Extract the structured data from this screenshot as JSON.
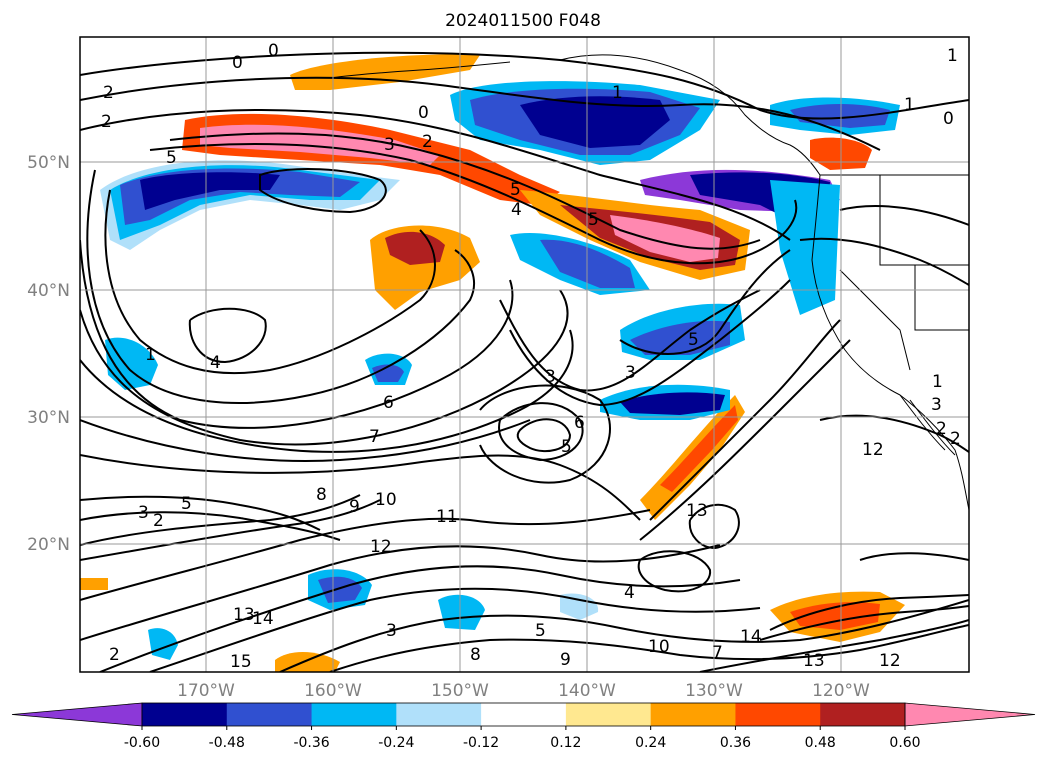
{
  "title": "2024011500 F048",
  "lat_labels": [
    "50°N",
    "40°N",
    "30°N",
    "20°N"
  ],
  "lon_labels": [
    "170°W",
    "160°W",
    "150°W",
    "140°W",
    "130°W",
    "120°W"
  ],
  "colorbar": {
    "ticks": [
      "-0.60",
      "-0.48",
      "-0.36",
      "-0.24",
      "-0.12",
      "0.12",
      "0.24",
      "0.36",
      "0.48",
      "0.60"
    ],
    "colors": [
      "#8c38d8",
      "#000090",
      "#3050d0",
      "#00b8f4",
      "#b0e0fa",
      "#ffffff",
      "#ffe890",
      "#ffa000",
      "#ff4800",
      "#b02020",
      "#ff88b0"
    ]
  },
  "contour_labels": [
    "0",
    "0",
    "1",
    "1",
    "0",
    "2",
    "5",
    "3",
    "2",
    "5",
    "4",
    "5",
    "1",
    "3",
    "6",
    "7",
    "3",
    "6",
    "5",
    "5",
    "4",
    "3",
    "2",
    "8",
    "9",
    "10",
    "11",
    "12",
    "13",
    "14",
    "15",
    "3",
    "4",
    "5",
    "10",
    "9",
    "8",
    "7",
    "14",
    "13",
    "12",
    "13",
    "12",
    "5",
    "1",
    "2",
    "2",
    "3",
    "2",
    "1",
    "0",
    "2"
  ]
}
